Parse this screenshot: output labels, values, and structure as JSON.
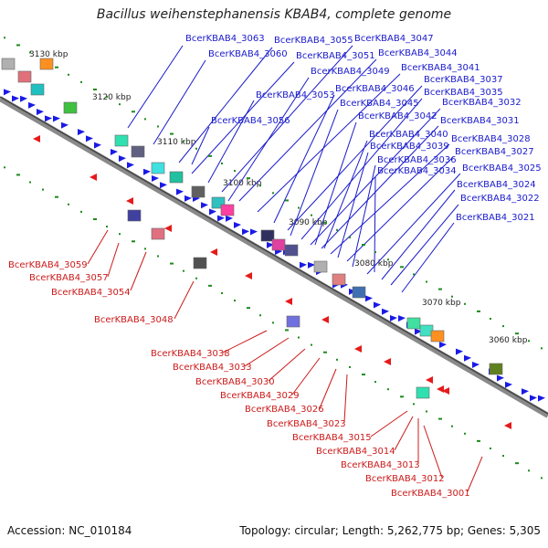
{
  "title": "Bacillus weihenstephanensis KBAB4, complete genome",
  "footer": {
    "accession": "Accession: NC_010184",
    "summary": "Topology: circular; Length: 5,262,775 bp; Genes: 5,305"
  },
  "ticks": [
    "3130 kbp",
    "3120 kbp",
    "3110 kbp",
    "3100 kbp",
    "3090 kbp",
    "3080 kbp",
    "3070 kbp",
    "3060 kbp"
  ],
  "labels_top": [
    "BcerKBAB4_3063",
    "BcerKBAB4_3060",
    "BcerKBAB4_3055",
    "BcerKBAB4_3051",
    "BcerKBAB4_3047",
    "BcerKBAB4_3044",
    "BcerKBAB4_3049",
    "BcerKBAB4_3041",
    "BcerKBAB4_3053",
    "BcerKBAB4_3046",
    "BcerKBAB4_3037",
    "BcerKBAB4_3045",
    "BcerKBAB4_3035",
    "BcerKBAB4_3032",
    "BcerKBAB4_3056",
    "BcerKBAB4_3042",
    "BcerKBAB4_3031",
    "BcerKBAB4_3040",
    "BcerKBAB4_3028",
    "BcerKBAB4_3039",
    "BcerKBAB4_3027",
    "BcerKBAB4_3036",
    "BcerKBAB4_3025",
    "BcerKBAB4_3034",
    "BcerKBAB4_3024",
    "BcerKBAB4_3022",
    "BcerKBAB4_3021"
  ],
  "labels_bottom": [
    "BcerKBAB4_3059",
    "BcerKBAB4_3057",
    "BcerKBAB4_3054",
    "BcerKBAB4_3048",
    "BcerKBAB4_3038",
    "BcerKBAB4_3033",
    "BcerKBAB4_3030",
    "BcerKBAB4_3029",
    "BcerKBAB4_3026",
    "BcerKBAB4_3023",
    "BcerKBAB4_3015",
    "BcerKBAB4_3014",
    "BcerKBAB4_3013",
    "BcerKBAB4_3012",
    "BcerKBAB4_3001"
  ],
  "colors": {
    "forward_strand": "#1a1ae6",
    "reverse_strand": "#e61a1a",
    "backbone": "#6e6e6e",
    "tick_mark": "#1e8a1e",
    "top_label": "#1a1acc",
    "bottom_label": "#cc1a1a"
  }
}
